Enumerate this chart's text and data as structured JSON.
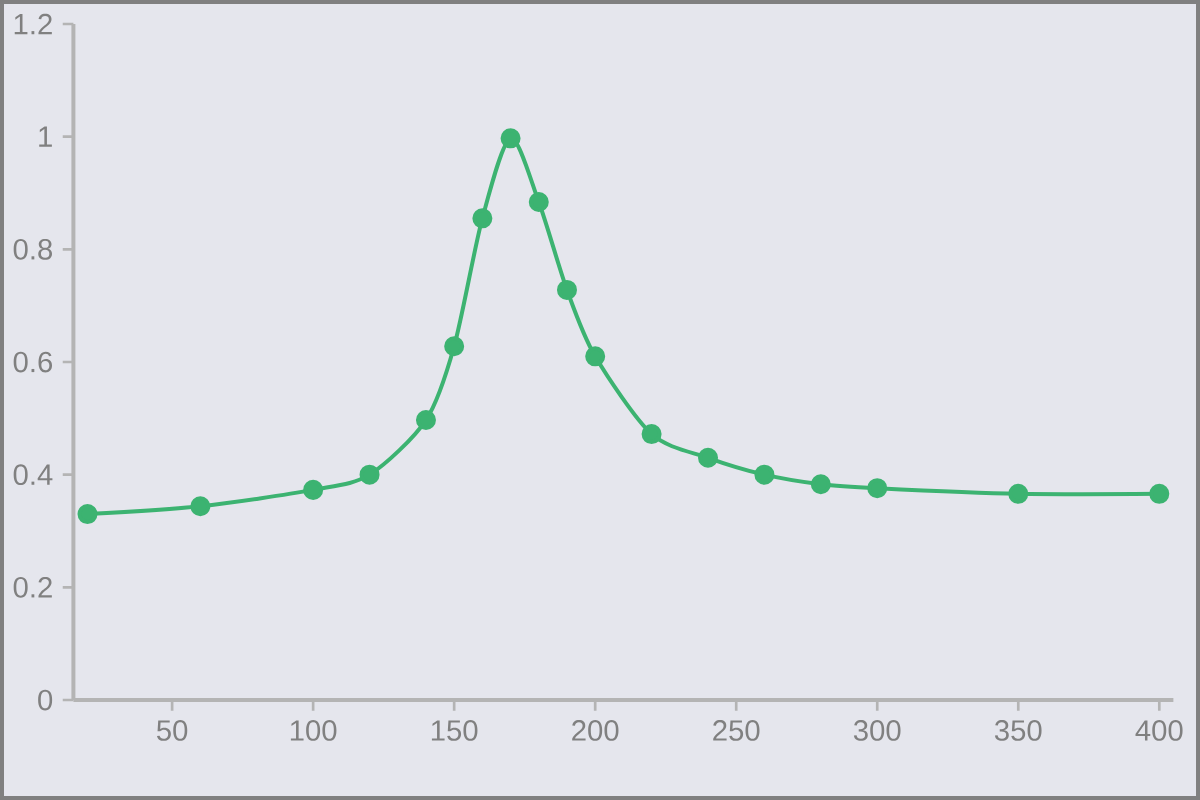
{
  "chart_data": {
    "type": "line",
    "x": [
      20,
      60,
      100,
      120,
      140,
      150,
      160,
      170,
      180,
      190,
      200,
      220,
      240,
      260,
      280,
      300,
      350,
      400
    ],
    "values": [
      0.33,
      0.344,
      0.373,
      0.4,
      0.497,
      0.628,
      0.855,
      0.997,
      0.884,
      0.728,
      0.61,
      0.472,
      0.43,
      0.4,
      0.383,
      0.376,
      0.366,
      0.366
    ],
    "color": "#3cb371",
    "marker": "circle",
    "line_style": "solid",
    "xlim": [
      15,
      405
    ],
    "ylim": [
      0,
      1.2
    ],
    "xticks": [
      50,
      100,
      150,
      200,
      250,
      300,
      350,
      400
    ],
    "yticks": [
      0,
      0.2,
      0.4,
      0.6,
      0.8,
      1,
      1.2
    ]
  }
}
